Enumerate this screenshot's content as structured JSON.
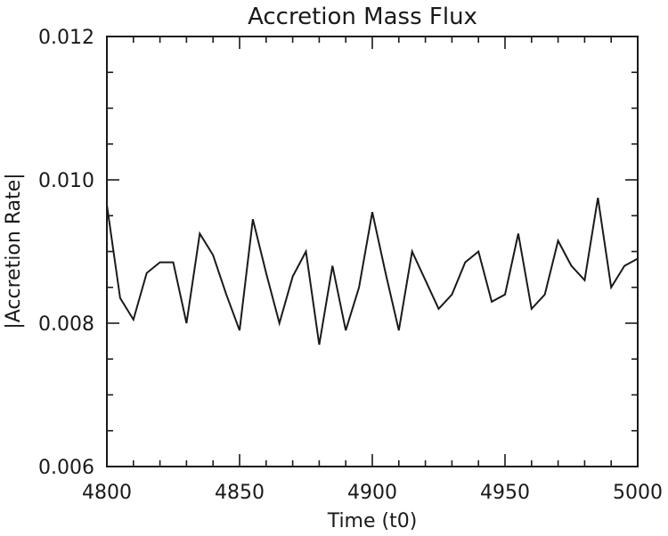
{
  "chart_data": {
    "type": "line",
    "title": "Accretion Mass Flux",
    "xlabel": "Time (t0)",
    "ylabel": "|Accretion Rate|",
    "xlim": [
      4800,
      5000
    ],
    "ylim": [
      0.006,
      0.012
    ],
    "x_ticks": [
      4800,
      4850,
      4900,
      4950,
      5000
    ],
    "x_tick_labels": [
      "4800",
      "4850",
      "4900",
      "4950",
      "5000"
    ],
    "y_ticks": [
      0.006,
      0.008,
      0.01,
      0.012
    ],
    "y_tick_labels": [
      "0.006",
      "0.008",
      "0.010",
      "0.012"
    ],
    "x_minor_step": 10,
    "y_minor_step": 0.0005,
    "grid": false,
    "line_color": "#1a1a1a",
    "series": [
      {
        "name": "accretion-rate",
        "x": [
          4800,
          4805,
          4810,
          4815,
          4820,
          4825,
          4830,
          4835,
          4840,
          4845,
          4850,
          4855,
          4860,
          4865,
          4870,
          4875,
          4880,
          4885,
          4890,
          4895,
          4900,
          4905,
          4910,
          4915,
          4920,
          4925,
          4930,
          4935,
          4940,
          4945,
          4950,
          4955,
          4960,
          4965,
          4970,
          4975,
          4980,
          4985,
          4990,
          4995,
          5000
        ],
        "values": [
          0.00965,
          0.00835,
          0.00805,
          0.0087,
          0.00885,
          0.00885,
          0.008,
          0.00925,
          0.00895,
          0.0084,
          0.0079,
          0.00945,
          0.0087,
          0.008,
          0.00865,
          0.009,
          0.0077,
          0.0088,
          0.0079,
          0.0085,
          0.00955,
          0.0087,
          0.0079,
          0.009,
          0.0086,
          0.0082,
          0.0084,
          0.00885,
          0.009,
          0.0083,
          0.0084,
          0.00925,
          0.0082,
          0.0084,
          0.00915,
          0.0088,
          0.0086,
          0.00975,
          0.0085,
          0.0088,
          0.0089
        ]
      }
    ]
  }
}
